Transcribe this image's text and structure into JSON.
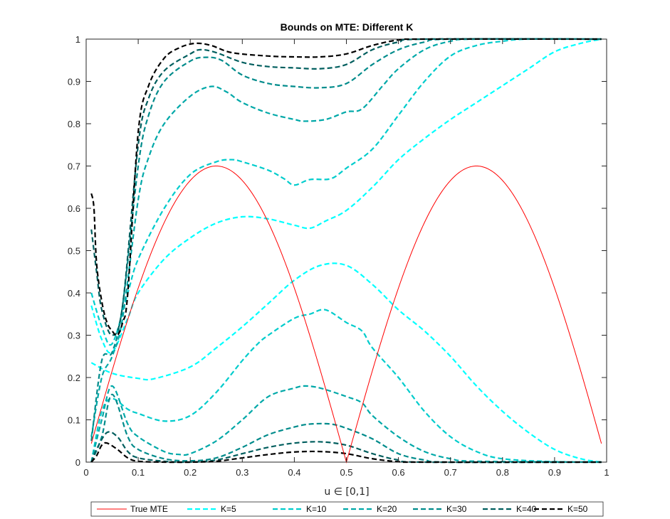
{
  "chart_data": {
    "type": "line",
    "title": "Bounds on MTE: Different K",
    "xlabel": "u ∈ [0,1]",
    "ylabel": "",
    "xlim": [
      0,
      1
    ],
    "ylim": [
      0,
      1
    ],
    "xticks": [
      0,
      0.1,
      0.2,
      0.3,
      0.4,
      0.5,
      0.6,
      0.7,
      0.8,
      0.9,
      1
    ],
    "yticks": [
      0,
      0.1,
      0.2,
      0.3,
      0.4,
      0.5,
      0.6,
      0.7,
      0.8,
      0.9,
      1
    ],
    "grid": false,
    "legend_position": "bottom",
    "legend_orientation": "horizontal",
    "true_mte": {
      "name": "True MTE",
      "color": "#ff0000",
      "style": "solid",
      "formula": "0.7*|sin(2*pi*u)|",
      "x_range": [
        0.01,
        0.99
      ]
    },
    "series": [
      {
        "name": "K=5",
        "color": "#00ffff",
        "style": "dashed",
        "upper": [
          [
            0.01,
            0.37
          ],
          [
            0.03,
            0.29
          ],
          [
            0.05,
            0.26
          ],
          [
            0.08,
            0.34
          ],
          [
            0.1,
            0.4
          ],
          [
            0.15,
            0.48
          ],
          [
            0.2,
            0.53
          ],
          [
            0.25,
            0.565
          ],
          [
            0.3,
            0.58
          ],
          [
            0.35,
            0.575
          ],
          [
            0.4,
            0.56
          ],
          [
            0.43,
            0.553
          ],
          [
            0.46,
            0.57
          ],
          [
            0.5,
            0.595
          ],
          [
            0.55,
            0.65
          ],
          [
            0.6,
            0.715
          ],
          [
            0.65,
            0.765
          ],
          [
            0.7,
            0.81
          ],
          [
            0.75,
            0.85
          ],
          [
            0.8,
            0.89
          ],
          [
            0.85,
            0.93
          ],
          [
            0.9,
            0.97
          ],
          [
            0.95,
            0.99
          ],
          [
            0.99,
            1.0
          ]
        ],
        "lower": [
          [
            0.01,
            0.235
          ],
          [
            0.05,
            0.21
          ],
          [
            0.1,
            0.198
          ],
          [
            0.13,
            0.197
          ],
          [
            0.2,
            0.225
          ],
          [
            0.25,
            0.27
          ],
          [
            0.3,
            0.32
          ],
          [
            0.35,
            0.375
          ],
          [
            0.4,
            0.43
          ],
          [
            0.45,
            0.465
          ],
          [
            0.5,
            0.465
          ],
          [
            0.55,
            0.42
          ],
          [
            0.6,
            0.36
          ],
          [
            0.65,
            0.31
          ],
          [
            0.7,
            0.25
          ],
          [
            0.75,
            0.18
          ],
          [
            0.8,
            0.12
          ],
          [
            0.85,
            0.07
          ],
          [
            0.9,
            0.03
          ],
          [
            0.95,
            0.008
          ],
          [
            0.99,
            0.0
          ]
        ]
      },
      {
        "name": "K=10",
        "color": "#00cccc",
        "style": "dashed",
        "upper": [
          [
            0.01,
            0.4
          ],
          [
            0.03,
            0.32
          ],
          [
            0.05,
            0.28
          ],
          [
            0.08,
            0.4
          ],
          [
            0.1,
            0.48
          ],
          [
            0.15,
            0.6
          ],
          [
            0.2,
            0.68
          ],
          [
            0.25,
            0.71
          ],
          [
            0.28,
            0.715
          ],
          [
            0.3,
            0.71
          ],
          [
            0.35,
            0.69
          ],
          [
            0.38,
            0.67
          ],
          [
            0.4,
            0.655
          ],
          [
            0.43,
            0.668
          ],
          [
            0.47,
            0.67
          ],
          [
            0.5,
            0.695
          ],
          [
            0.55,
            0.74
          ],
          [
            0.6,
            0.82
          ],
          [
            0.65,
            0.9
          ],
          [
            0.7,
            0.96
          ],
          [
            0.75,
            0.985
          ],
          [
            0.8,
            0.995
          ],
          [
            0.85,
            1.0
          ],
          [
            0.99,
            1.0
          ]
        ],
        "lower": [
          [
            0.01,
            0.0
          ],
          [
            0.03,
            0.12
          ],
          [
            0.05,
            0.15
          ],
          [
            0.08,
            0.125
          ],
          [
            0.1,
            0.115
          ],
          [
            0.15,
            0.097
          ],
          [
            0.2,
            0.11
          ],
          [
            0.25,
            0.165
          ],
          [
            0.3,
            0.24
          ],
          [
            0.33,
            0.28
          ],
          [
            0.35,
            0.3
          ],
          [
            0.4,
            0.34
          ],
          [
            0.43,
            0.35
          ],
          [
            0.46,
            0.36
          ],
          [
            0.5,
            0.33
          ],
          [
            0.53,
            0.31
          ],
          [
            0.55,
            0.27
          ],
          [
            0.6,
            0.2
          ],
          [
            0.65,
            0.12
          ],
          [
            0.7,
            0.06
          ],
          [
            0.75,
            0.025
          ],
          [
            0.8,
            0.008
          ],
          [
            0.9,
            0.001
          ],
          [
            0.99,
            0.0
          ]
        ]
      },
      {
        "name": "K=20",
        "color": "#00a8a8",
        "style": "dashed",
        "upper": [
          [
            0.01,
            0.06
          ],
          [
            0.03,
            0.2
          ],
          [
            0.05,
            0.25
          ],
          [
            0.07,
            0.34
          ],
          [
            0.1,
            0.62
          ],
          [
            0.12,
            0.72
          ],
          [
            0.15,
            0.8
          ],
          [
            0.2,
            0.865
          ],
          [
            0.24,
            0.888
          ],
          [
            0.27,
            0.875
          ],
          [
            0.3,
            0.85
          ],
          [
            0.35,
            0.825
          ],
          [
            0.4,
            0.81
          ],
          [
            0.42,
            0.806
          ],
          [
            0.46,
            0.81
          ],
          [
            0.5,
            0.828
          ],
          [
            0.53,
            0.835
          ],
          [
            0.57,
            0.89
          ],
          [
            0.6,
            0.93
          ],
          [
            0.65,
            0.975
          ],
          [
            0.7,
            0.995
          ],
          [
            0.75,
            1.0
          ],
          [
            0.99,
            1.0
          ]
        ],
        "lower": [
          [
            0.01,
            0.0
          ],
          [
            0.03,
            0.1
          ],
          [
            0.05,
            0.18
          ],
          [
            0.08,
            0.09
          ],
          [
            0.1,
            0.06
          ],
          [
            0.15,
            0.025
          ],
          [
            0.18,
            0.018
          ],
          [
            0.2,
            0.02
          ],
          [
            0.25,
            0.05
          ],
          [
            0.3,
            0.1
          ],
          [
            0.35,
            0.155
          ],
          [
            0.4,
            0.175
          ],
          [
            0.42,
            0.18
          ],
          [
            0.45,
            0.175
          ],
          [
            0.5,
            0.155
          ],
          [
            0.53,
            0.14
          ],
          [
            0.55,
            0.11
          ],
          [
            0.6,
            0.06
          ],
          [
            0.65,
            0.025
          ],
          [
            0.7,
            0.008
          ],
          [
            0.75,
            0.002
          ],
          [
            0.99,
            0.0
          ]
        ]
      },
      {
        "name": "K=30",
        "color": "#008b8b",
        "style": "dashed",
        "upper": [
          [
            0.01,
            0.05
          ],
          [
            0.03,
            0.24
          ],
          [
            0.05,
            0.26
          ],
          [
            0.07,
            0.37
          ],
          [
            0.1,
            0.7
          ],
          [
            0.12,
            0.82
          ],
          [
            0.15,
            0.9
          ],
          [
            0.2,
            0.948
          ],
          [
            0.23,
            0.957
          ],
          [
            0.26,
            0.95
          ],
          [
            0.3,
            0.915
          ],
          [
            0.35,
            0.895
          ],
          [
            0.4,
            0.888
          ],
          [
            0.45,
            0.885
          ],
          [
            0.5,
            0.895
          ],
          [
            0.55,
            0.94
          ],
          [
            0.6,
            0.975
          ],
          [
            0.65,
            0.993
          ],
          [
            0.7,
            1.0
          ],
          [
            0.99,
            1.0
          ]
        ],
        "lower": [
          [
            0.01,
            0.0
          ],
          [
            0.03,
            0.06
          ],
          [
            0.05,
            0.16
          ],
          [
            0.08,
            0.06
          ],
          [
            0.1,
            0.03
          ],
          [
            0.15,
            0.008
          ],
          [
            0.2,
            0.003
          ],
          [
            0.25,
            0.01
          ],
          [
            0.3,
            0.035
          ],
          [
            0.35,
            0.065
          ],
          [
            0.4,
            0.083
          ],
          [
            0.43,
            0.09
          ],
          [
            0.47,
            0.09
          ],
          [
            0.5,
            0.08
          ],
          [
            0.55,
            0.055
          ],
          [
            0.6,
            0.02
          ],
          [
            0.65,
            0.005
          ],
          [
            0.7,
            0.0
          ],
          [
            0.99,
            0.0
          ]
        ]
      },
      {
        "name": "K=40",
        "color": "#005e5e",
        "style": "dashed",
        "upper": [
          [
            0.01,
            0.55
          ],
          [
            0.02,
            0.45
          ],
          [
            0.03,
            0.36
          ],
          [
            0.05,
            0.3
          ],
          [
            0.07,
            0.37
          ],
          [
            0.1,
            0.75
          ],
          [
            0.12,
            0.86
          ],
          [
            0.15,
            0.925
          ],
          [
            0.2,
            0.965
          ],
          [
            0.22,
            0.975
          ],
          [
            0.25,
            0.968
          ],
          [
            0.3,
            0.945
          ],
          [
            0.35,
            0.935
          ],
          [
            0.4,
            0.932
          ],
          [
            0.45,
            0.93
          ],
          [
            0.5,
            0.94
          ],
          [
            0.55,
            0.975
          ],
          [
            0.6,
            0.993
          ],
          [
            0.65,
            1.0
          ],
          [
            0.99,
            1.0
          ]
        ],
        "lower": [
          [
            0.01,
            0.0
          ],
          [
            0.02,
            0.03
          ],
          [
            0.04,
            0.07
          ],
          [
            0.06,
            0.06
          ],
          [
            0.08,
            0.025
          ],
          [
            0.1,
            0.01
          ],
          [
            0.15,
            0.002
          ],
          [
            0.2,
            0.0
          ],
          [
            0.25,
            0.005
          ],
          [
            0.3,
            0.02
          ],
          [
            0.35,
            0.035
          ],
          [
            0.4,
            0.045
          ],
          [
            0.45,
            0.048
          ],
          [
            0.5,
            0.04
          ],
          [
            0.55,
            0.02
          ],
          [
            0.6,
            0.005
          ],
          [
            0.65,
            0.0
          ],
          [
            0.99,
            0.0
          ]
        ]
      },
      {
        "name": "K=50",
        "color": "#000000",
        "style": "dashed",
        "upper": [
          [
            0.01,
            0.635
          ],
          [
            0.015,
            0.6
          ],
          [
            0.02,
            0.47
          ],
          [
            0.03,
            0.38
          ],
          [
            0.04,
            0.33
          ],
          [
            0.05,
            0.31
          ],
          [
            0.06,
            0.3
          ],
          [
            0.07,
            0.33
          ],
          [
            0.08,
            0.4
          ],
          [
            0.1,
            0.78
          ],
          [
            0.12,
            0.89
          ],
          [
            0.15,
            0.955
          ],
          [
            0.18,
            0.98
          ],
          [
            0.21,
            0.99
          ],
          [
            0.24,
            0.985
          ],
          [
            0.28,
            0.968
          ],
          [
            0.35,
            0.96
          ],
          [
            0.4,
            0.958
          ],
          [
            0.45,
            0.958
          ],
          [
            0.5,
            0.965
          ],
          [
            0.55,
            0.985
          ],
          [
            0.6,
            0.998
          ],
          [
            0.65,
            1.0
          ],
          [
            0.99,
            1.0
          ]
        ],
        "lower": [
          [
            0.01,
            0.0
          ],
          [
            0.02,
            0.015
          ],
          [
            0.03,
            0.04
          ],
          [
            0.04,
            0.045
          ],
          [
            0.06,
            0.03
          ],
          [
            0.08,
            0.01
          ],
          [
            0.1,
            0.002
          ],
          [
            0.15,
            0.0
          ],
          [
            0.2,
            0.0
          ],
          [
            0.25,
            0.002
          ],
          [
            0.3,
            0.01
          ],
          [
            0.35,
            0.018
          ],
          [
            0.4,
            0.024
          ],
          [
            0.45,
            0.025
          ],
          [
            0.5,
            0.02
          ],
          [
            0.55,
            0.008
          ],
          [
            0.6,
            0.001
          ],
          [
            0.65,
            0.0
          ],
          [
            0.99,
            0.0
          ]
        ]
      }
    ]
  }
}
